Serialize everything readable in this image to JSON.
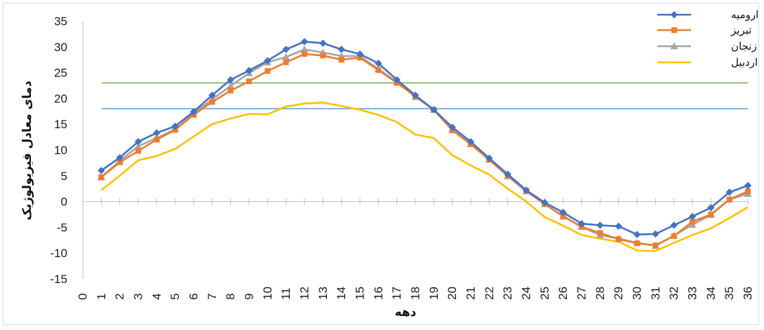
{
  "chart_data": {
    "type": "line",
    "title": "",
    "xlabel": "دهه",
    "ylabel": "دمای معادل فیزیولوژیک",
    "xlim": [
      0,
      36
    ],
    "ylim": [
      -15,
      35
    ],
    "y_ticks": [
      "35",
      "30",
      "25",
      "20",
      "15",
      "10",
      "5",
      "0",
      "-5",
      "-10",
      "-15"
    ],
    "x_ticks": [
      "0",
      "1",
      "2",
      "3",
      "4",
      "5",
      "6",
      "7",
      "8",
      "9",
      "10",
      "11",
      "12",
      "13",
      "14",
      "15",
      "16",
      "17",
      "18",
      "19",
      "20",
      "21",
      "22",
      "23",
      "24",
      "25",
      "26",
      "27",
      "28",
      "29",
      "30",
      "31",
      "32",
      "33",
      "34",
      "35",
      "36"
    ],
    "grid": false,
    "legend_position": "top-right",
    "x": [
      1,
      2,
      3,
      4,
      5,
      6,
      7,
      8,
      9,
      10,
      11,
      12,
      13,
      14,
      15,
      16,
      17,
      18,
      19,
      20,
      21,
      22,
      23,
      24,
      25,
      26,
      27,
      28,
      29,
      30,
      31,
      32,
      33,
      34,
      35,
      36
    ],
    "series": [
      {
        "name": "ارومیه",
        "color": "#4472c4",
        "marker": "diamond",
        "values": [
          6.0,
          8.5,
          11.6,
          13.3,
          14.6,
          17.4,
          20.6,
          23.6,
          25.4,
          27.3,
          29.5,
          31.0,
          30.7,
          29.5,
          28.6,
          26.8,
          23.6,
          20.6,
          17.8,
          14.4,
          11.6,
          8.4,
          5.3,
          2.2,
          -0.2,
          -2.1,
          -4.3,
          -4.6,
          -4.8,
          -6.4,
          -6.3,
          -4.6,
          -2.9,
          -1.2,
          1.8,
          3.1
        ]
      },
      {
        "name": "تبریز",
        "color": "#ed7d31",
        "marker": "square",
        "values": [
          4.7,
          7.6,
          9.8,
          12.0,
          13.9,
          16.8,
          19.3,
          21.5,
          23.3,
          25.3,
          27.0,
          28.6,
          28.3,
          27.5,
          27.9,
          25.5,
          23.0,
          20.4,
          17.8,
          13.8,
          11.1,
          8.1,
          5.0,
          2.1,
          -0.5,
          -2.8,
          -4.9,
          -6.1,
          -7.3,
          -8.1,
          -8.5,
          -6.7,
          -3.9,
          -2.5,
          0.4,
          2.0
        ]
      },
      {
        "name": "زنجان",
        "color": "#a5a5a5",
        "marker": "triangle",
        "values": [
          4.7,
          7.9,
          10.7,
          12.3,
          14.0,
          17.1,
          19.8,
          22.4,
          24.9,
          27.0,
          28.0,
          29.5,
          28.9,
          28.2,
          28.2,
          25.7,
          23.2,
          20.3,
          17.8,
          13.9,
          11.2,
          8.1,
          4.9,
          2.0,
          -0.5,
          -2.9,
          -4.9,
          -6.5,
          -7.2,
          -8.0,
          -8.6,
          -6.6,
          -4.5,
          -2.6,
          0.4,
          1.5
        ]
      },
      {
        "name": "اردبیل",
        "color": "#ffc000",
        "marker": "none",
        "values": [
          2.2,
          5.0,
          8.0,
          8.8,
          10.2,
          12.6,
          15.0,
          16.1,
          17.0,
          16.9,
          18.4,
          19.0,
          19.2,
          18.5,
          17.8,
          16.8,
          15.4,
          13.0,
          12.3,
          9.0,
          7.0,
          5.2,
          2.5,
          0.0,
          -3.0,
          -4.7,
          -6.5,
          -7.2,
          -7.8,
          -9.5,
          -9.6,
          -8.0,
          -6.5,
          -5.2,
          -3.2,
          -1.1
        ]
      }
    ],
    "reference_lines": [
      {
        "y": 23.0,
        "color": "#70ad47"
      },
      {
        "y": 18.0,
        "color": "#5b9bd5"
      }
    ]
  }
}
